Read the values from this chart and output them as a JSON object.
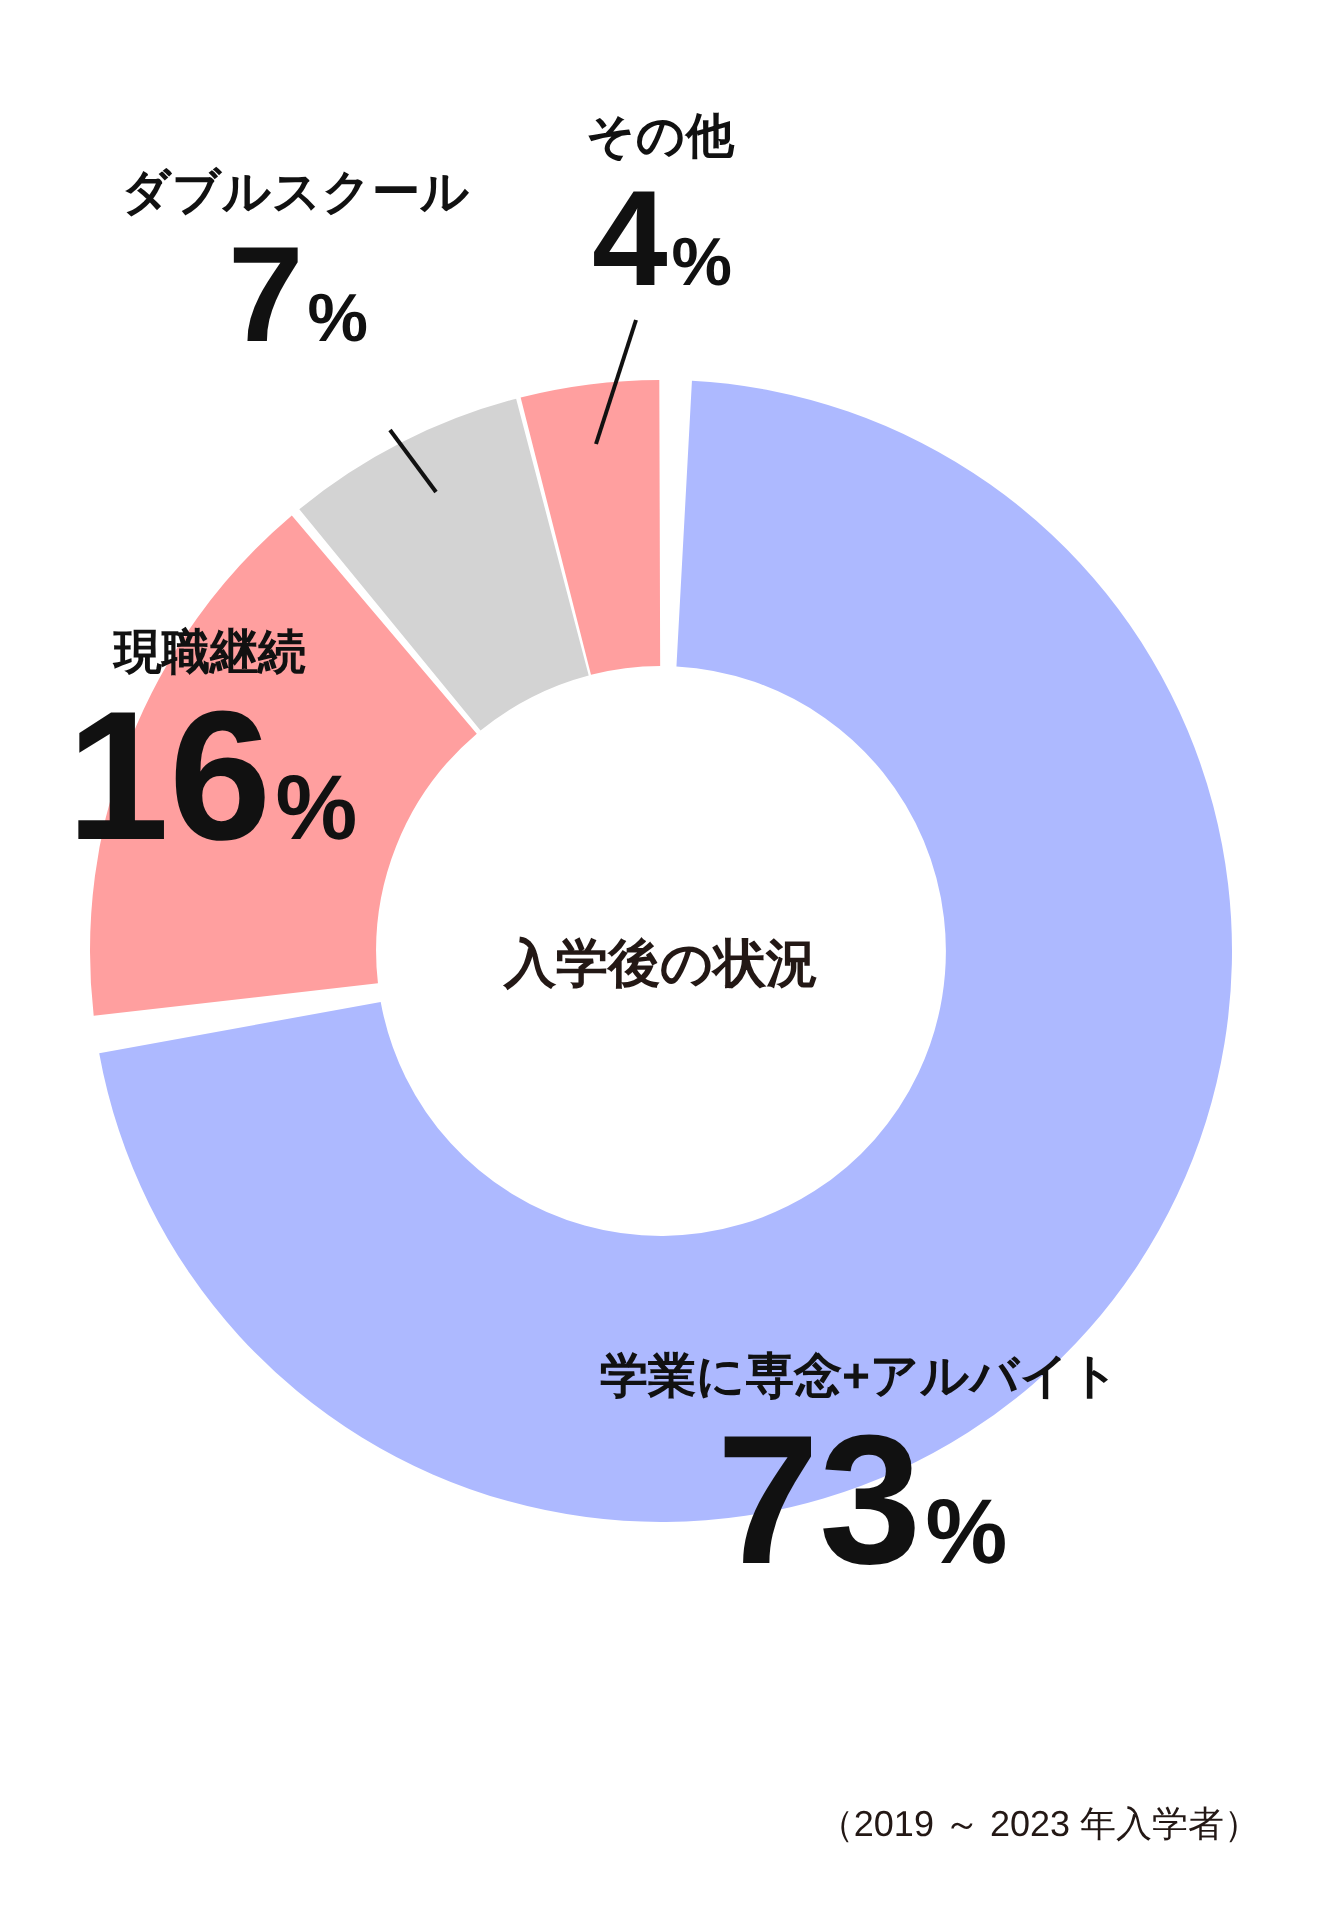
{
  "chart_data": {
    "type": "donut",
    "title": "入学後の状況",
    "categories": [
      "学業に専念+アルバイト",
      "現職継続",
      "ダブルスクール",
      "その他"
    ],
    "values": [
      73,
      16,
      7,
      4
    ],
    "value_labels": [
      "73%",
      "16%",
      "7%",
      "4%"
    ],
    "colors": [
      "#adb9ff",
      "#ff9f9f",
      "#d3d3d3",
      "#ff9f9f"
    ],
    "annotations": [
      "（2019 ～ 2023 年入学者）"
    ],
    "legend": false
  }
}
